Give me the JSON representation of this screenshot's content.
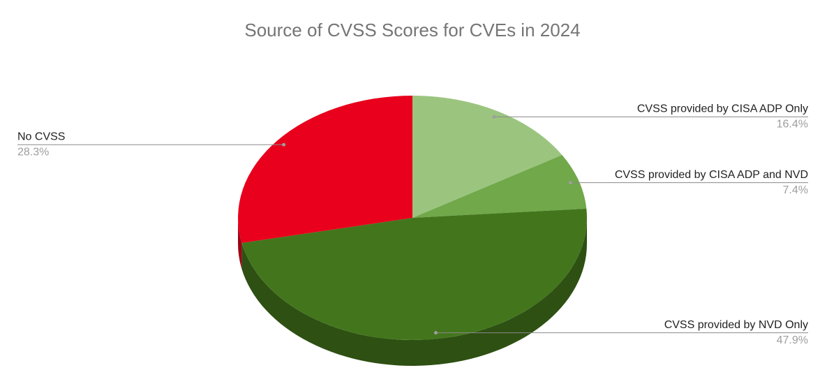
{
  "chart_data": {
    "type": "pie",
    "title": "Source of CVSS Scores for CVEs in 2024",
    "categories": [
      "CVSS provided by CISA ADP Only",
      "CVSS provided by CISA ADP and NVD",
      "CVSS provided by NVD Only",
      "No CVSS"
    ],
    "values": [
      16.4,
      7.4,
      47.9,
      28.3
    ],
    "value_labels": [
      "16.4%",
      "7.4%",
      "47.9%",
      "28.3%"
    ],
    "colors": [
      "#9bc57f",
      "#70a84a",
      "#43761c",
      "#e8001c"
    ]
  }
}
